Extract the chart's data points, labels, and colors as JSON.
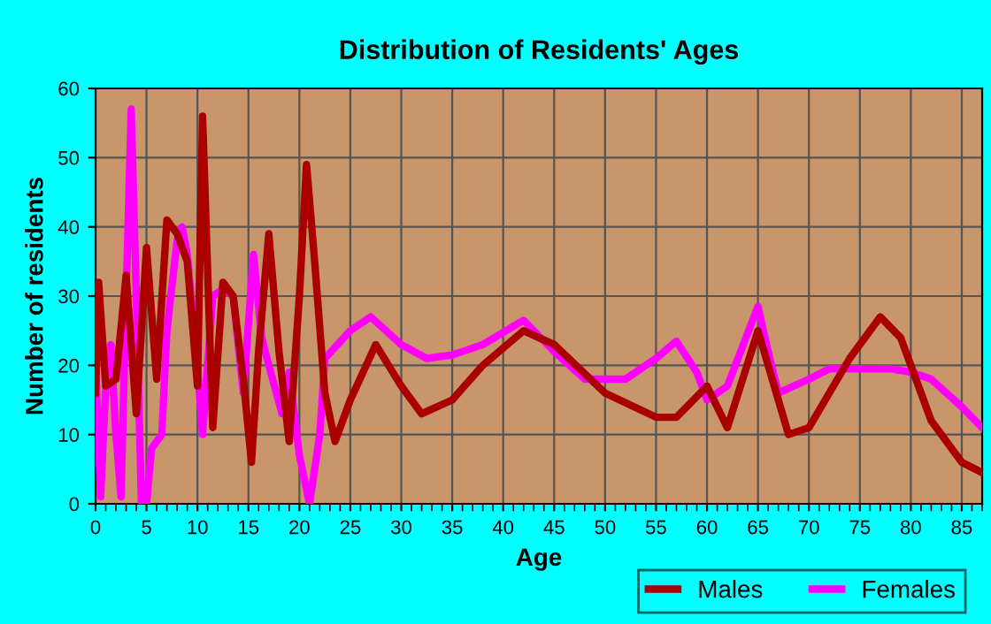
{
  "chart_data": {
    "type": "line",
    "title": "Distribution of Residents' Ages",
    "xlabel": "Age",
    "ylabel": "Number of residents",
    "xlim": [
      0,
      87
    ],
    "xticks": [
      0,
      5,
      10,
      15,
      20,
      25,
      30,
      35,
      40,
      45,
      50,
      55,
      60,
      65,
      70,
      75,
      80,
      85
    ],
    "ylim": [
      0,
      60
    ],
    "yticks": [
      0,
      10,
      20,
      30,
      40,
      50,
      60
    ],
    "grid": true,
    "legend": "bottom right",
    "line_style": "solid",
    "series": [
      {
        "name": "Males",
        "color": "#aa0000",
        "x": [
          0,
          0.3,
          1,
          2,
          3,
          4,
          5,
          6,
          7,
          8,
          9,
          10,
          10.5,
          11.5,
          12.5,
          13.5,
          14.5,
          15.3,
          16,
          17,
          18,
          19,
          20,
          20.7,
          21.5,
          22.5,
          23.5,
          25,
          27.5,
          30,
          32,
          35,
          38,
          42,
          45,
          50,
          55,
          57,
          60,
          62,
          65,
          67,
          68,
          70,
          74,
          77,
          79,
          82,
          85,
          87
        ],
        "values": [
          16,
          32,
          17,
          18,
          33,
          13,
          37,
          18,
          41,
          39,
          35,
          17,
          56,
          11,
          32,
          30,
          18,
          6,
          22,
          39,
          22,
          9,
          30,
          49,
          35,
          16,
          9,
          15,
          23,
          17,
          13,
          15,
          20,
          25,
          23,
          16,
          12.5,
          12.5,
          17,
          11,
          25,
          15,
          10,
          11,
          21,
          27,
          24,
          12,
          6,
          4.5
        ]
      },
      {
        "name": "Females",
        "color": "#ff00ff",
        "x": [
          0,
          0.5,
          1,
          1.5,
          2,
          2.5,
          3,
          3.5,
          4,
          4.5,
          5,
          5.5,
          6,
          6.5,
          7,
          8,
          8.5,
          9,
          10,
          10.5,
          11.5,
          12.5,
          13.5,
          14.5,
          15.5,
          16.3,
          17,
          18.3,
          19,
          20,
          21,
          22,
          22.5,
          25,
          27,
          30,
          32.5,
          35,
          38,
          42,
          45,
          48,
          52,
          55,
          57,
          59,
          60,
          62,
          65,
          66,
          67,
          70,
          72,
          75,
          78,
          80,
          82,
          85,
          87
        ],
        "values": [
          20,
          1,
          17,
          23,
          10,
          1,
          30,
          57,
          30,
          0,
          0,
          8,
          9,
          10,
          25,
          38,
          40,
          36,
          20,
          10,
          30,
          31,
          30,
          16,
          36,
          24,
          20,
          13,
          19,
          7,
          0,
          10,
          21,
          25,
          27,
          23,
          21,
          21.5,
          23,
          26.5,
          22,
          18,
          18,
          21,
          23.5,
          19,
          15,
          17,
          28.5,
          22,
          16,
          18,
          19.5,
          19.5,
          19.5,
          19,
          18,
          14,
          11
        ]
      }
    ]
  }
}
